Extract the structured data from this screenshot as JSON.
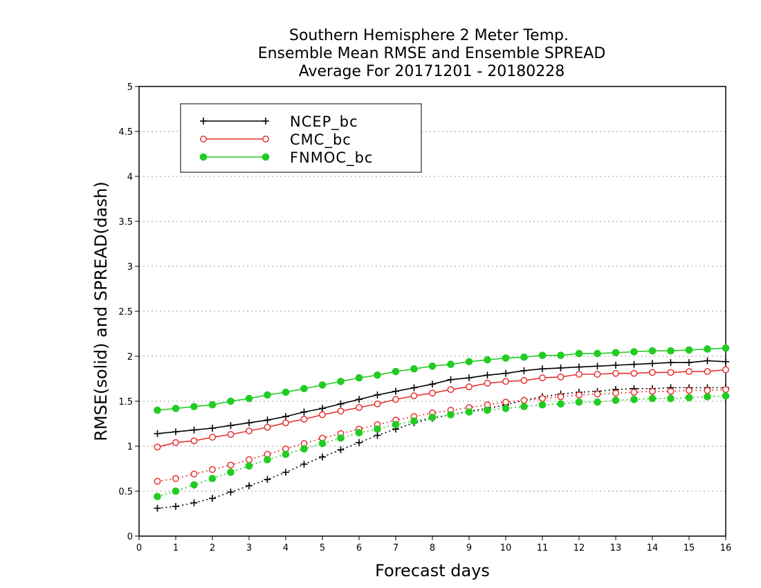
{
  "chart_data": {
    "type": "line",
    "title": [
      "Southern Hemisphere 2 Meter Temp.",
      "Ensemble Mean RMSE and Ensemble SPREAD",
      "Average For 20171201 - 20180228"
    ],
    "xlabel": "Forecast days",
    "ylabel": "RMSE(solid) and SPREAD(dash)",
    "xlim": [
      0,
      16
    ],
    "ylim": [
      0,
      5
    ],
    "xticks": [
      "0",
      "1",
      "2",
      "3",
      "4",
      "5",
      "6",
      "7",
      "8",
      "9",
      "10",
      "11",
      "12",
      "13",
      "14",
      "15",
      "16"
    ],
    "yticks": [
      "0",
      "0.5",
      "1",
      "1.5",
      "2",
      "2.5",
      "3",
      "3.5",
      "4",
      "4.5",
      "5"
    ],
    "grid": "horizontal dotted",
    "legend_position": "top-left",
    "x": [
      0.5,
      1,
      1.5,
      2,
      2.5,
      3,
      3.5,
      4,
      4.5,
      5,
      5.5,
      6,
      6.5,
      7,
      7.5,
      8,
      8.5,
      9,
      9.5,
      10,
      10.5,
      11,
      11.5,
      12,
      12.5,
      13,
      13.5,
      14,
      14.5,
      15,
      15.5,
      16
    ],
    "series": [
      {
        "name": "NCEP_bc",
        "color": "#000000",
        "marker": "plus",
        "rmse": [
          1.14,
          1.16,
          1.18,
          1.2,
          1.23,
          1.26,
          1.29,
          1.33,
          1.38,
          1.42,
          1.47,
          1.52,
          1.57,
          1.61,
          1.65,
          1.69,
          1.74,
          1.76,
          1.79,
          1.81,
          1.84,
          1.86,
          1.87,
          1.88,
          1.89,
          1.9,
          1.91,
          1.92,
          1.93,
          1.93,
          1.95,
          1.94
        ],
        "spread": [
          0.31,
          0.33,
          0.37,
          0.42,
          0.49,
          0.56,
          0.63,
          0.71,
          0.8,
          0.88,
          0.96,
          1.04,
          1.12,
          1.19,
          1.26,
          1.31,
          1.35,
          1.39,
          1.42,
          1.46,
          1.51,
          1.55,
          1.58,
          1.6,
          1.61,
          1.63,
          1.64,
          1.64,
          1.65,
          1.65,
          1.65,
          1.65
        ]
      },
      {
        "name": "CMC_bc",
        "color": "#e83030",
        "marker": "open-circle",
        "rmse": [
          0.99,
          1.04,
          1.06,
          1.1,
          1.13,
          1.17,
          1.21,
          1.26,
          1.3,
          1.35,
          1.39,
          1.43,
          1.47,
          1.52,
          1.56,
          1.59,
          1.63,
          1.66,
          1.7,
          1.72,
          1.73,
          1.76,
          1.77,
          1.8,
          1.8,
          1.81,
          1.81,
          1.82,
          1.82,
          1.83,
          1.83,
          1.85
        ],
        "spread": [
          0.61,
          0.64,
          0.69,
          0.74,
          0.79,
          0.85,
          0.91,
          0.97,
          1.03,
          1.09,
          1.14,
          1.19,
          1.24,
          1.29,
          1.33,
          1.37,
          1.4,
          1.43,
          1.46,
          1.49,
          1.51,
          1.53,
          1.55,
          1.57,
          1.58,
          1.59,
          1.6,
          1.61,
          1.61,
          1.62,
          1.62,
          1.63
        ]
      },
      {
        "name": "FNMOC_bc",
        "color": "#22cc22",
        "marker": "filled-circle",
        "rmse": [
          1.4,
          1.42,
          1.44,
          1.46,
          1.5,
          1.53,
          1.57,
          1.6,
          1.64,
          1.68,
          1.72,
          1.76,
          1.79,
          1.83,
          1.86,
          1.89,
          1.91,
          1.94,
          1.96,
          1.98,
          1.99,
          2.01,
          2.01,
          2.03,
          2.03,
          2.04,
          2.05,
          2.06,
          2.06,
          2.07,
          2.08,
          2.09
        ],
        "spread": [
          0.44,
          0.5,
          0.57,
          0.64,
          0.71,
          0.78,
          0.85,
          0.91,
          0.97,
          1.03,
          1.09,
          1.15,
          1.19,
          1.24,
          1.28,
          1.32,
          1.35,
          1.38,
          1.4,
          1.42,
          1.44,
          1.46,
          1.47,
          1.49,
          1.49,
          1.51,
          1.52,
          1.53,
          1.53,
          1.54,
          1.55,
          1.56
        ]
      }
    ]
  }
}
